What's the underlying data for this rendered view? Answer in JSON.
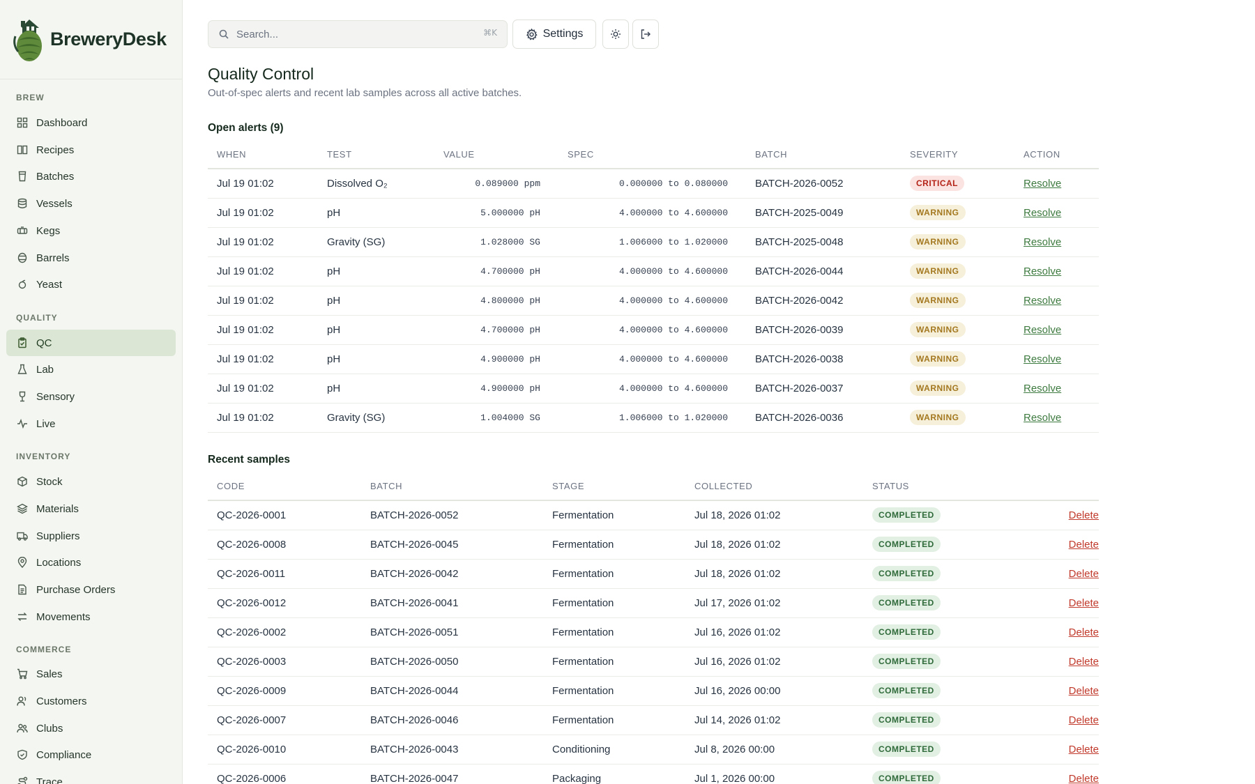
{
  "brand": {
    "name": "BreweryDesk"
  },
  "sidebar": {
    "sections": [
      {
        "label": "BREW",
        "items": [
          {
            "label": "Dashboard",
            "icon": "dashboard-icon"
          },
          {
            "label": "Recipes",
            "icon": "book-icon"
          },
          {
            "label": "Batches",
            "icon": "glass-icon"
          },
          {
            "label": "Vessels",
            "icon": "database-icon"
          },
          {
            "label": "Kegs",
            "icon": "keg-icon"
          },
          {
            "label": "Barrels",
            "icon": "barrel-icon"
          },
          {
            "label": "Yeast",
            "icon": "yeast-icon"
          }
        ]
      },
      {
        "label": "QUALITY",
        "items": [
          {
            "label": "QC",
            "icon": "clipboard-check-icon",
            "active": true
          },
          {
            "label": "Lab",
            "icon": "flask-icon"
          },
          {
            "label": "Sensory",
            "icon": "wine-glass-icon"
          },
          {
            "label": "Live",
            "icon": "activity-icon"
          }
        ]
      },
      {
        "label": "INVENTORY",
        "items": [
          {
            "label": "Stock",
            "icon": "box-icon"
          },
          {
            "label": "Materials",
            "icon": "layers-icon"
          },
          {
            "label": "Suppliers",
            "icon": "truck-icon"
          },
          {
            "label": "Locations",
            "icon": "map-pin-icon"
          },
          {
            "label": "Purchase Orders",
            "icon": "document-icon"
          },
          {
            "label": "Movements",
            "icon": "arrows-icon"
          }
        ]
      },
      {
        "label": "COMMERCE",
        "items": [
          {
            "label": "Sales",
            "icon": "cart-icon"
          },
          {
            "label": "Customers",
            "icon": "users-icon"
          },
          {
            "label": "Clubs",
            "icon": "group-icon"
          },
          {
            "label": "Compliance",
            "icon": "shield-icon"
          },
          {
            "label": "Trace",
            "icon": "route-icon"
          }
        ]
      }
    ]
  },
  "topbar": {
    "search_placeholder": "Search...",
    "search_shortcut": "⌘K",
    "settings_label": "Settings"
  },
  "header": {
    "title": "Quality Control",
    "subtitle": "Out-of-spec alerts and recent lab samples across all active batches."
  },
  "alerts": {
    "title": "Open alerts (9)",
    "columns": [
      "WHEN",
      "TEST",
      "VALUE",
      "SPEC",
      "BATCH",
      "SEVERITY",
      "ACTION"
    ],
    "rows": [
      {
        "when": "Jul 19 01:02",
        "test": "Dissolved O₂",
        "value": "0.089000 ppm",
        "spec": "0.000000 to 0.080000",
        "batch": "BATCH-2026-0052",
        "severity": "CRITICAL",
        "action": "Resolve"
      },
      {
        "when": "Jul 19 01:02",
        "test": "pH",
        "value": "5.000000 pH",
        "spec": "4.000000 to 4.600000",
        "batch": "BATCH-2025-0049",
        "severity": "WARNING",
        "action": "Resolve"
      },
      {
        "when": "Jul 19 01:02",
        "test": "Gravity (SG)",
        "value": "1.028000 SG",
        "spec": "1.006000 to 1.020000",
        "batch": "BATCH-2025-0048",
        "severity": "WARNING",
        "action": "Resolve"
      },
      {
        "when": "Jul 19 01:02",
        "test": "pH",
        "value": "4.700000 pH",
        "spec": "4.000000 to 4.600000",
        "batch": "BATCH-2026-0044",
        "severity": "WARNING",
        "action": "Resolve"
      },
      {
        "when": "Jul 19 01:02",
        "test": "pH",
        "value": "4.800000 pH",
        "spec": "4.000000 to 4.600000",
        "batch": "BATCH-2026-0042",
        "severity": "WARNING",
        "action": "Resolve"
      },
      {
        "when": "Jul 19 01:02",
        "test": "pH",
        "value": "4.700000 pH",
        "spec": "4.000000 to 4.600000",
        "batch": "BATCH-2026-0039",
        "severity": "WARNING",
        "action": "Resolve"
      },
      {
        "when": "Jul 19 01:02",
        "test": "pH",
        "value": "4.900000 pH",
        "spec": "4.000000 to 4.600000",
        "batch": "BATCH-2026-0038",
        "severity": "WARNING",
        "action": "Resolve"
      },
      {
        "when": "Jul 19 01:02",
        "test": "pH",
        "value": "4.900000 pH",
        "spec": "4.000000 to 4.600000",
        "batch": "BATCH-2026-0037",
        "severity": "WARNING",
        "action": "Resolve"
      },
      {
        "when": "Jul 19 01:02",
        "test": "Gravity (SG)",
        "value": "1.004000 SG",
        "spec": "1.006000 to 1.020000",
        "batch": "BATCH-2026-0036",
        "severity": "WARNING",
        "action": "Resolve"
      }
    ]
  },
  "samples": {
    "title": "Recent samples",
    "columns": [
      "CODE",
      "BATCH",
      "STAGE",
      "COLLECTED",
      "STATUS",
      ""
    ],
    "rows": [
      {
        "code": "QC-2026-0001",
        "batch": "BATCH-2026-0052",
        "stage": "Fermentation",
        "collected": "Jul 18, 2026 01:02",
        "status": "COMPLETED",
        "action": "Delete"
      },
      {
        "code": "QC-2026-0008",
        "batch": "BATCH-2026-0045",
        "stage": "Fermentation",
        "collected": "Jul 18, 2026 01:02",
        "status": "COMPLETED",
        "action": "Delete"
      },
      {
        "code": "QC-2026-0011",
        "batch": "BATCH-2026-0042",
        "stage": "Fermentation",
        "collected": "Jul 18, 2026 01:02",
        "status": "COMPLETED",
        "action": "Delete"
      },
      {
        "code": "QC-2026-0012",
        "batch": "BATCH-2026-0041",
        "stage": "Fermentation",
        "collected": "Jul 17, 2026 01:02",
        "status": "COMPLETED",
        "action": "Delete"
      },
      {
        "code": "QC-2026-0002",
        "batch": "BATCH-2026-0051",
        "stage": "Fermentation",
        "collected": "Jul 16, 2026 01:02",
        "status": "COMPLETED",
        "action": "Delete"
      },
      {
        "code": "QC-2026-0003",
        "batch": "BATCH-2026-0050",
        "stage": "Fermentation",
        "collected": "Jul 16, 2026 01:02",
        "status": "COMPLETED",
        "action": "Delete"
      },
      {
        "code": "QC-2026-0009",
        "batch": "BATCH-2026-0044",
        "stage": "Fermentation",
        "collected": "Jul 16, 2026 00:00",
        "status": "COMPLETED",
        "action": "Delete"
      },
      {
        "code": "QC-2026-0007",
        "batch": "BATCH-2026-0046",
        "stage": "Fermentation",
        "collected": "Jul 14, 2026 01:02",
        "status": "COMPLETED",
        "action": "Delete"
      },
      {
        "code": "QC-2026-0010",
        "batch": "BATCH-2026-0043",
        "stage": "Conditioning",
        "collected": "Jul 8, 2026 00:00",
        "status": "COMPLETED",
        "action": "Delete"
      },
      {
        "code": "QC-2026-0006",
        "batch": "BATCH-2026-0047",
        "stage": "Packaging",
        "collected": "Jul 1, 2026 00:00",
        "status": "COMPLETED",
        "action": "Delete"
      }
    ]
  },
  "colors": {
    "accent": "#3d7a3f",
    "critical": "#b42318",
    "warning": "#a3781f",
    "completed": "#2f6b3a",
    "delete": "#c0392b",
    "sidebar_bg": "#f4f6f1"
  }
}
